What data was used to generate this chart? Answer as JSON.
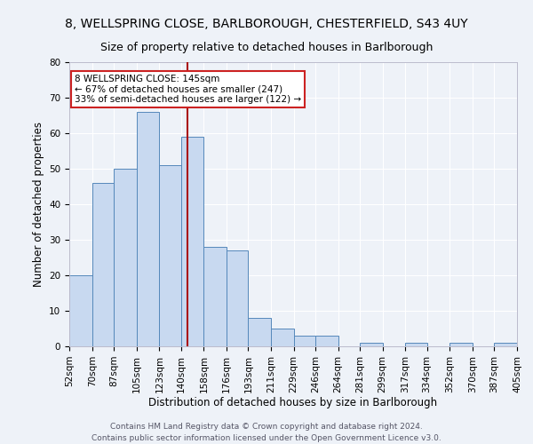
{
  "title1": "8, WELLSPRING CLOSE, BARLBOROUGH, CHESTERFIELD, S43 4UY",
  "title2": "Size of property relative to detached houses in Barlborough",
  "xlabel": "Distribution of detached houses by size in Barlborough",
  "ylabel": "Number of detached properties",
  "bar_values": [
    20,
    46,
    50,
    66,
    51,
    59,
    28,
    27,
    8,
    5,
    3,
    3,
    0,
    1,
    0,
    1,
    0,
    1,
    0,
    1
  ],
  "bin_edges": [
    52,
    70,
    87,
    105,
    123,
    140,
    158,
    176,
    193,
    211,
    229,
    246,
    264,
    281,
    299,
    317,
    334,
    352,
    370,
    387,
    405
  ],
  "bin_labels": [
    "52sqm",
    "70sqm",
    "87sqm",
    "105sqm",
    "123sqm",
    "140sqm",
    "158sqm",
    "176sqm",
    "193sqm",
    "211sqm",
    "229sqm",
    "246sqm",
    "264sqm",
    "281sqm",
    "299sqm",
    "317sqm",
    "334sqm",
    "352sqm",
    "370sqm",
    "387sqm",
    "405sqm"
  ],
  "bar_color": "#c8d9f0",
  "bar_edge_color": "#5588bb",
  "vline_x": 145,
  "vline_color": "#aa1111",
  "ylim": [
    0,
    80
  ],
  "yticks": [
    0,
    10,
    20,
    30,
    40,
    50,
    60,
    70,
    80
  ],
  "annotation_title": "8 WELLSPRING CLOSE: 145sqm",
  "annotation_line1": "← 67% of detached houses are smaller (247)",
  "annotation_line2": "33% of semi-detached houses are larger (122) →",
  "annotation_box_color": "#ffffff",
  "annotation_border_color": "#cc2222",
  "footer1": "Contains HM Land Registry data © Crown copyright and database right 2024.",
  "footer2": "Contains public sector information licensed under the Open Government Licence v3.0.",
  "bg_color": "#eef2f8",
  "plot_bg_color": "#eef2f8",
  "grid_color": "#ffffff",
  "title_fontsize": 10,
  "subtitle_fontsize": 9,
  "axis_label_fontsize": 8.5,
  "tick_fontsize": 7.5,
  "footer_fontsize": 6.5
}
